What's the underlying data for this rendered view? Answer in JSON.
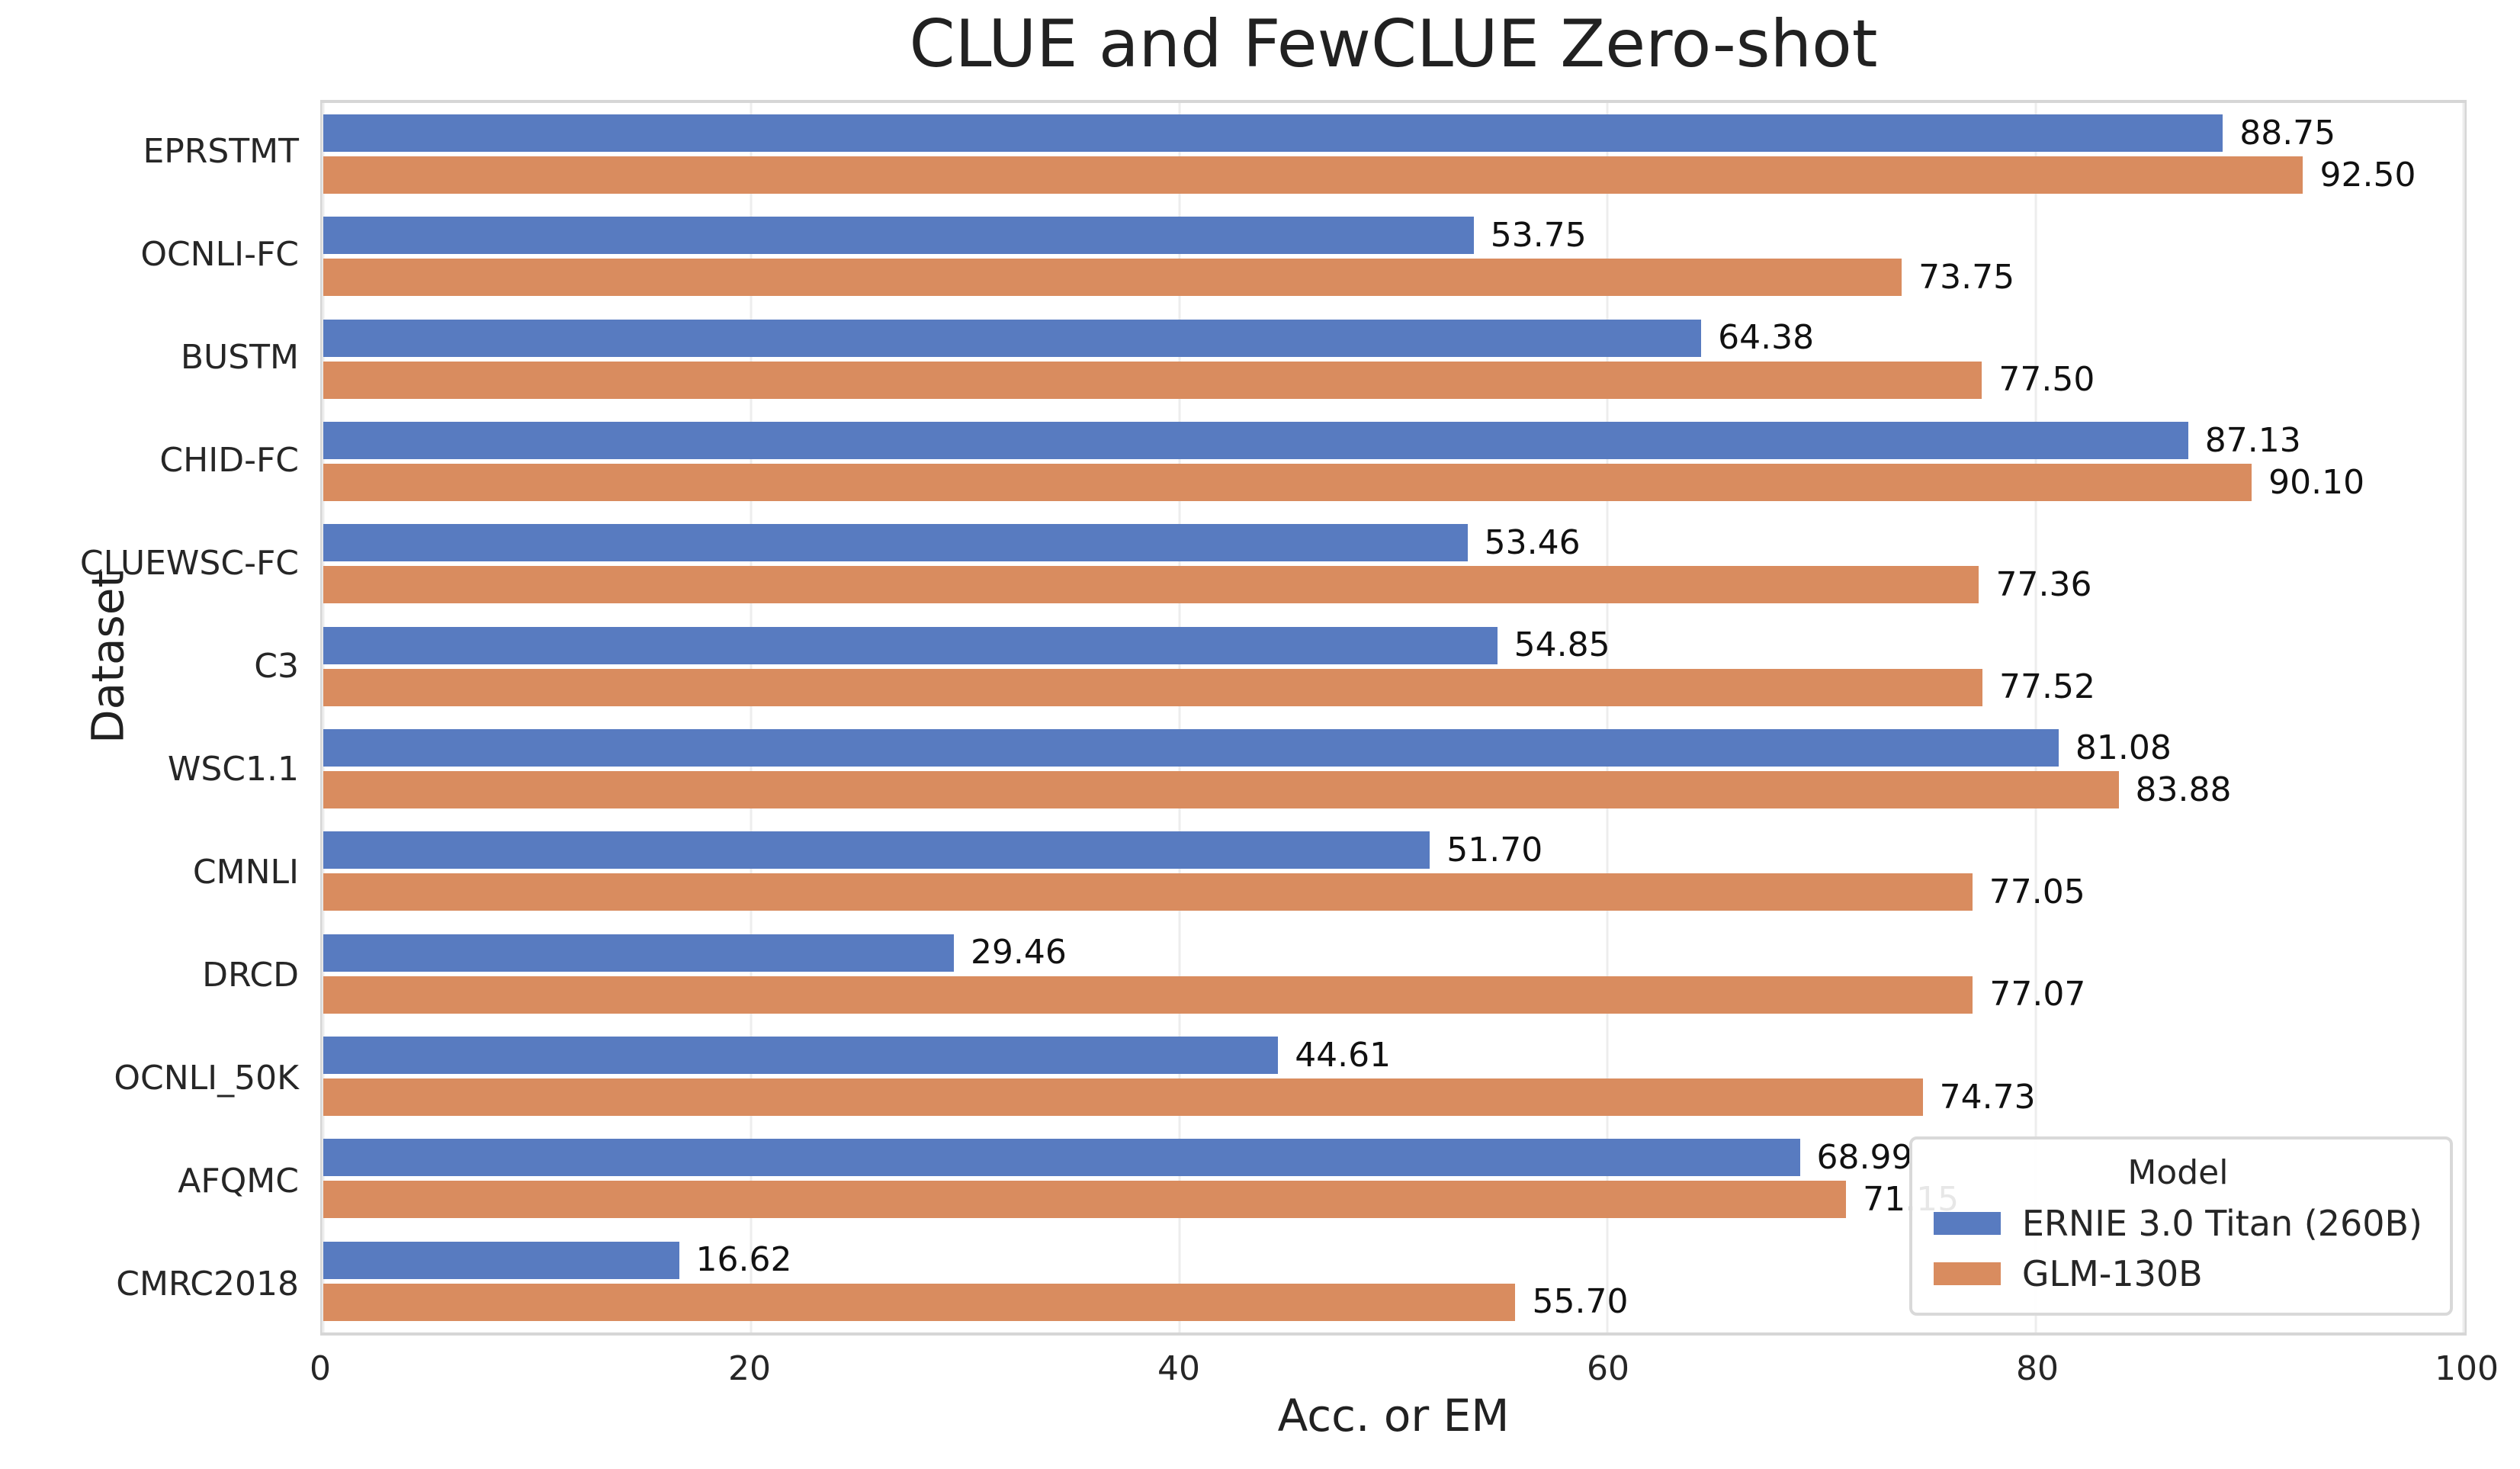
{
  "figure": {
    "title": "CLUE and FewCLUE Zero-shot",
    "xlabel": "Acc. or EM",
    "ylabel": "Dataset"
  },
  "legend": {
    "title": "Model",
    "entries": [
      {
        "label": "ERNIE 3.0 Titan (260B)",
        "color": "#587bc0"
      },
      {
        "label": "GLM-130B",
        "color": "#d98c5f"
      }
    ],
    "position": "lower right"
  },
  "chart_data": {
    "type": "bar",
    "orientation": "horizontal",
    "title": "CLUE and FewCLUE Zero-shot",
    "xlabel": "Acc. or EM",
    "ylabel": "Dataset",
    "xlim": [
      0,
      100
    ],
    "xticks": [
      "0",
      "20",
      "40",
      "60",
      "80",
      "100"
    ],
    "grid": true,
    "legend_position": "lower right",
    "categories": [
      "EPRSTMT",
      "OCNLI-FC",
      "BUSTM",
      "CHID-FC",
      "CLUEWSC-FC",
      "C3",
      "WSC1.1",
      "CMNLI",
      "DRCD",
      "OCNLI_50K",
      "AFQMC",
      "CMRC2018"
    ],
    "series": [
      {
        "name": "ERNIE 3.0 Titan (260B)",
        "color": "#587bc0",
        "values": [
          88.75,
          53.75,
          64.38,
          87.13,
          53.46,
          54.85,
          81.08,
          51.7,
          29.46,
          44.61,
          68.99,
          16.62
        ]
      },
      {
        "name": "GLM-130B",
        "color": "#d98c5f",
        "values": [
          92.5,
          73.75,
          77.5,
          90.1,
          77.36,
          77.52,
          83.88,
          77.05,
          77.07,
          74.73,
          71.15,
          55.7
        ]
      }
    ],
    "value_label_decimals": 2
  }
}
